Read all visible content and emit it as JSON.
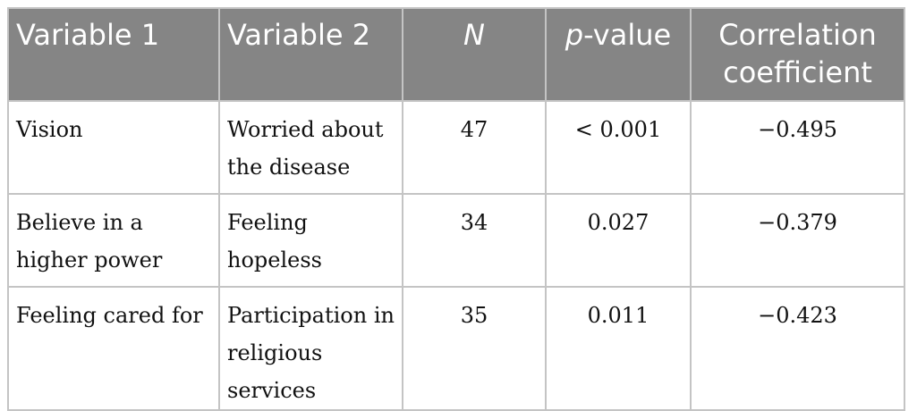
{
  "table": {
    "headers": {
      "variable1": "Variable 1",
      "variable2": "Variable 2",
      "n": "N",
      "p_italic": "p",
      "p_rest": "-value",
      "correlation": "Correlation coefficient"
    },
    "rows": [
      {
        "variable1": "Vision",
        "variable2": "Worried about the disease",
        "n": "47",
        "p": "< 0.001",
        "r": "−0.495"
      },
      {
        "variable1": "Believe in a higher power",
        "variable2": "Feeling hopeless",
        "n": "34",
        "p": "0.027",
        "r": "−0.379"
      },
      {
        "variable1": "Feeling cared for",
        "variable2": "Participation in religious services",
        "n": "35",
        "p": "0.011",
        "r": "−0.423"
      }
    ]
  }
}
